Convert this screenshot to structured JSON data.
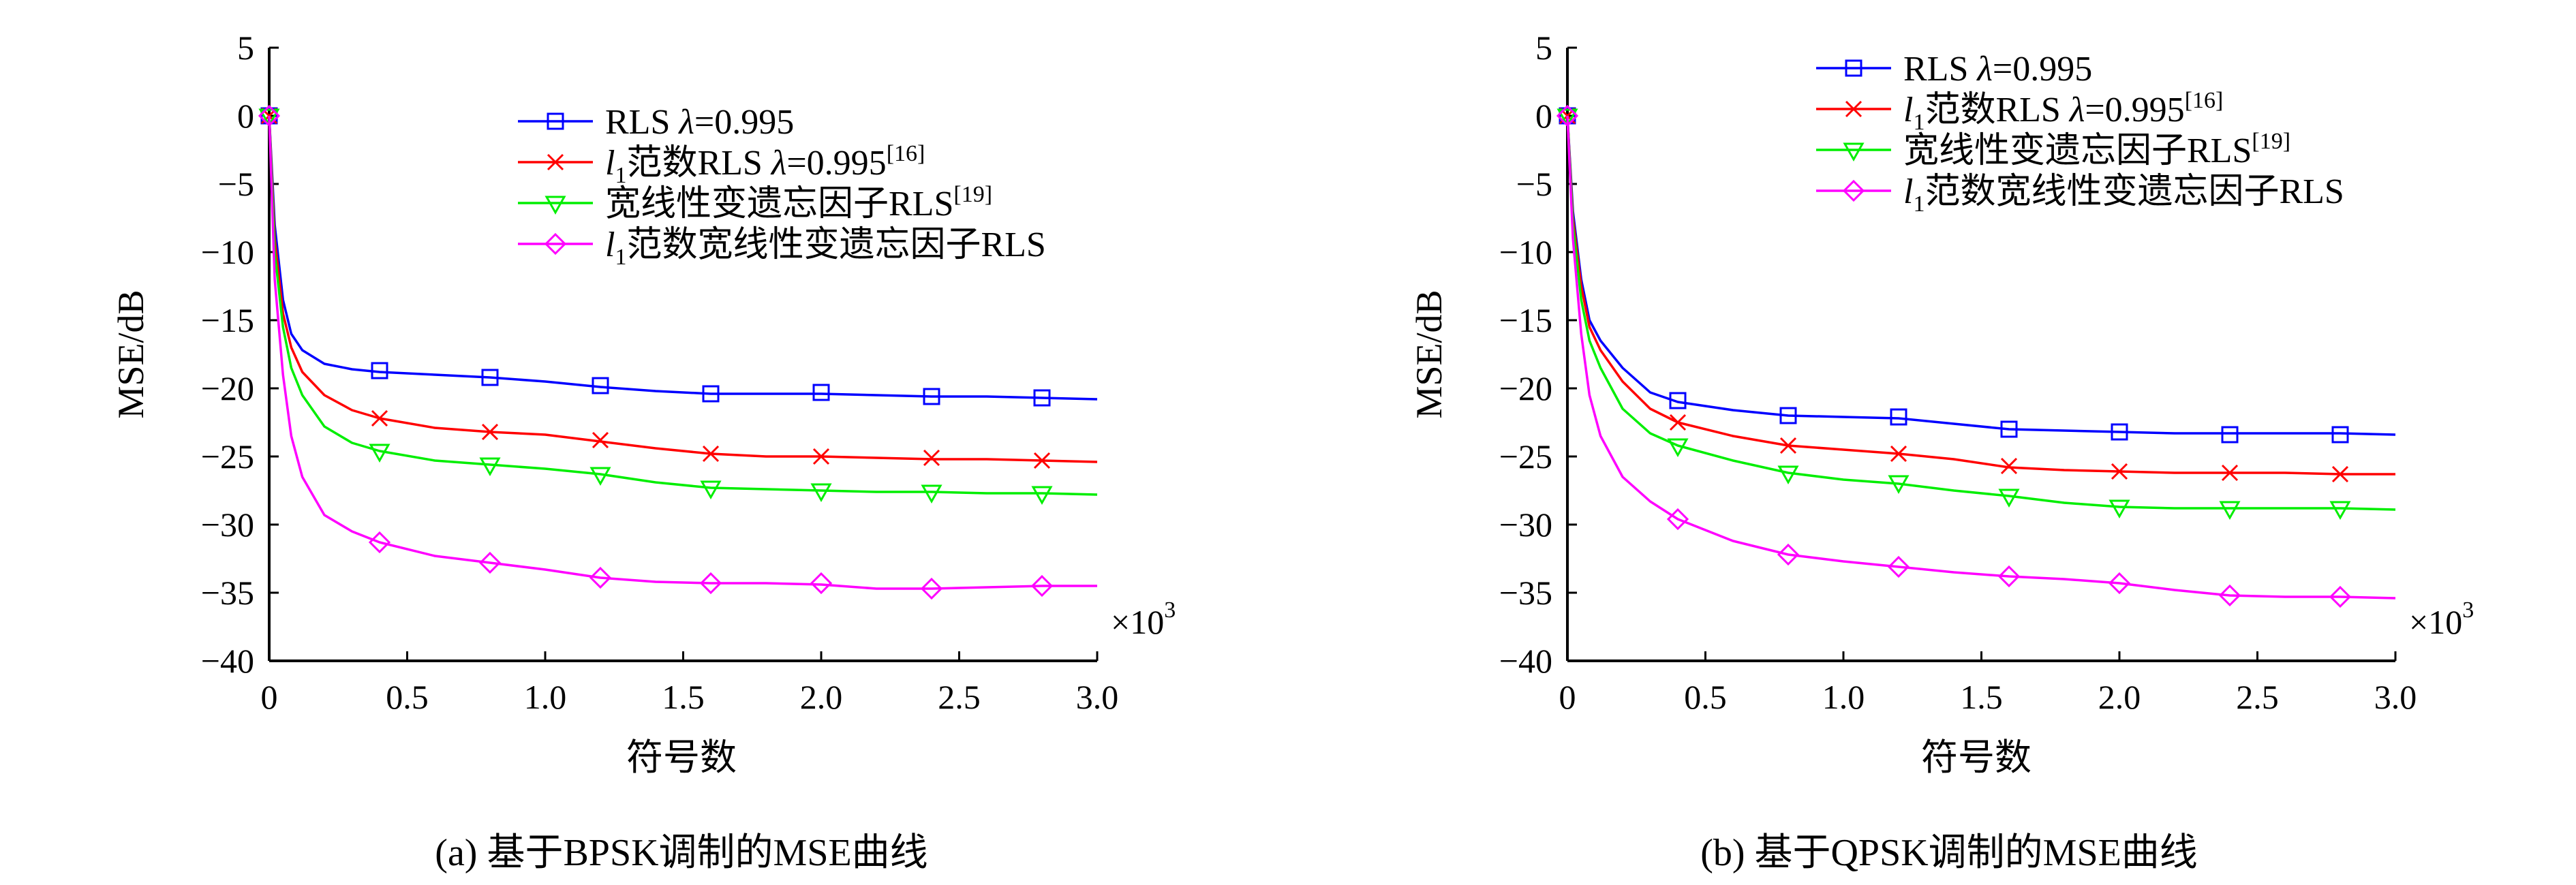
{
  "chart_data": [
    {
      "type": "line",
      "panel": "a",
      "caption": "(a) 基于BPSK调制的MSE曲线",
      "xlabel": "符号数",
      "ylabel": "MSE/dB",
      "x_scale_label": "×10",
      "x_scale_exp": "3",
      "xlim": [
        0,
        3.0
      ],
      "ylim": [
        -40,
        5
      ],
      "xticks": [
        "0",
        "0.5",
        "1.0",
        "1.5",
        "2.0",
        "2.5",
        "3.0"
      ],
      "yticks": [
        "5",
        "0",
        "-5",
        "-10",
        "-15",
        "-20",
        "-25",
        "-30",
        "-35",
        "-40"
      ],
      "legend": {
        "position": "top-right",
        "entries": [
          {
            "pre": "RLS ",
            "italic": "λ",
            "post": "=0.995",
            "sup": ""
          },
          {
            "italic_l": "l",
            "sub": "1",
            "pre": "范数RLS ",
            "italic": "λ",
            "post": "=0.995",
            "sup": "[16]"
          },
          {
            "pre": "宽线性变遗忘因子RLS",
            "sup": "[19]"
          },
          {
            "italic_l": "l",
            "sub": "1",
            "pre": "范数宽线性变遗忘因子RLS",
            "sup": ""
          }
        ]
      },
      "series": [
        {
          "name": "RLS λ=0.995",
          "color": "#0000ff",
          "marker": "square",
          "x": [
            0,
            0.02,
            0.05,
            0.08,
            0.12,
            0.2,
            0.3,
            0.4,
            0.6,
            0.8,
            1.0,
            1.2,
            1.4,
            1.6,
            1.8,
            2.0,
            2.2,
            2.4,
            2.6,
            2.8,
            3.0
          ],
          "y": [
            0,
            -8,
            -13.5,
            -16,
            -17.2,
            -18.2,
            -18.6,
            -18.8,
            -19.0,
            -19.2,
            -19.5,
            -19.9,
            -20.2,
            -20.4,
            -20.4,
            -20.4,
            -20.5,
            -20.6,
            -20.6,
            -20.7,
            -20.8
          ],
          "markers_x": [
            0,
            0.4,
            0.8,
            1.2,
            1.6,
            2.0,
            2.4,
            2.8
          ],
          "markers_y": [
            0,
            -18.7,
            -19.2,
            -19.8,
            -20.4,
            -20.3,
            -20.6,
            -20.7
          ]
        },
        {
          "name": "l1范数RLS λ=0.995",
          "color": "#ff0000",
          "marker": "x",
          "x": [
            0,
            0.02,
            0.05,
            0.08,
            0.12,
            0.2,
            0.3,
            0.4,
            0.6,
            0.8,
            1.0,
            1.2,
            1.4,
            1.6,
            1.8,
            2.0,
            2.2,
            2.4,
            2.6,
            2.8,
            3.0
          ],
          "y": [
            0,
            -9,
            -14.5,
            -17,
            -18.8,
            -20.5,
            -21.6,
            -22.2,
            -22.9,
            -23.2,
            -23.4,
            -23.9,
            -24.4,
            -24.8,
            -25.0,
            -25.0,
            -25.1,
            -25.2,
            -25.2,
            -25.3,
            -25.4
          ],
          "markers_x": [
            0,
            0.4,
            0.8,
            1.2,
            1.6,
            2.0,
            2.4,
            2.8
          ],
          "markers_y": [
            0,
            -22.2,
            -23.2,
            -23.8,
            -24.8,
            -25.0,
            -25.1,
            -25.3
          ]
        },
        {
          "name": "宽线性变遗忘因子RLS",
          "color": "#00ee00",
          "marker": "triangle-down",
          "x": [
            0,
            0.02,
            0.05,
            0.08,
            0.12,
            0.2,
            0.3,
            0.4,
            0.6,
            0.8,
            1.0,
            1.2,
            1.4,
            1.6,
            1.8,
            2.0,
            2.2,
            2.4,
            2.6,
            2.8,
            3.0
          ],
          "y": [
            0,
            -10,
            -15.5,
            -18.5,
            -20.5,
            -22.8,
            -24.0,
            -24.6,
            -25.3,
            -25.6,
            -25.9,
            -26.3,
            -26.9,
            -27.3,
            -27.4,
            -27.5,
            -27.6,
            -27.6,
            -27.7,
            -27.7,
            -27.8
          ],
          "markers_x": [
            0,
            0.4,
            0.8,
            1.2,
            1.6,
            2.0,
            2.4,
            2.8
          ],
          "markers_y": [
            0,
            -24.6,
            -25.6,
            -26.3,
            -27.3,
            -27.5,
            -27.6,
            -27.7
          ]
        },
        {
          "name": "l1范数宽线性变遗忘因子RLS",
          "color": "#ff00ff",
          "marker": "diamond",
          "x": [
            0,
            0.02,
            0.05,
            0.08,
            0.12,
            0.2,
            0.3,
            0.4,
            0.6,
            0.8,
            1.0,
            1.2,
            1.4,
            1.6,
            1.8,
            2.0,
            2.2,
            2.4,
            2.6,
            2.8,
            3.0
          ],
          "y": [
            0,
            -12,
            -19,
            -23.5,
            -26.5,
            -29.3,
            -30.5,
            -31.3,
            -32.3,
            -32.8,
            -33.3,
            -33.9,
            -34.2,
            -34.3,
            -34.3,
            -34.4,
            -34.7,
            -34.7,
            -34.6,
            -34.5,
            -34.5
          ],
          "markers_x": [
            0,
            0.4,
            0.8,
            1.2,
            1.6,
            2.0,
            2.4,
            2.8
          ],
          "markers_y": [
            0,
            -31.3,
            -32.8,
            -33.9,
            -34.3,
            -34.3,
            -34.7,
            -34.5
          ]
        }
      ]
    },
    {
      "type": "line",
      "panel": "b",
      "caption": "(b) 基于QPSK调制的MSE曲线",
      "xlabel": "符号数",
      "ylabel": "MSE/dB",
      "x_scale_label": "×10",
      "x_scale_exp": "3",
      "xlim": [
        0,
        3.0
      ],
      "ylim": [
        -40,
        5
      ],
      "xticks": [
        "0",
        "0.5",
        "1.0",
        "1.5",
        "2.0",
        "2.5",
        "3.0"
      ],
      "yticks": [
        "5",
        "0",
        "-5",
        "-10",
        "-15",
        "-20",
        "-25",
        "-30",
        "-35",
        "-40"
      ],
      "legend": {
        "position": "top-right",
        "entries": [
          {
            "pre": "RLS ",
            "italic": "λ",
            "post": "=0.995",
            "sup": ""
          },
          {
            "italic_l": "l",
            "sub": "1",
            "pre": "范数RLS ",
            "italic": "λ",
            "post": "=0.995",
            "sup": "[16]"
          },
          {
            "pre": "宽线性变遗忘因子RLS",
            "sup": "[19]"
          },
          {
            "italic_l": "l",
            "sub": "1",
            "pre": "范数宽线性变遗忘因子RLS",
            "sup": ""
          }
        ]
      },
      "series": [
        {
          "name": "RLS λ=0.995",
          "color": "#0000ff",
          "marker": "square",
          "x": [
            0,
            0.02,
            0.05,
            0.08,
            0.12,
            0.2,
            0.3,
            0.4,
            0.6,
            0.8,
            1.0,
            1.2,
            1.4,
            1.6,
            1.8,
            2.0,
            2.2,
            2.4,
            2.6,
            2.8,
            3.0
          ],
          "y": [
            0,
            -7,
            -12,
            -15,
            -16.5,
            -18.5,
            -20.3,
            -21.0,
            -21.6,
            -22.0,
            -22.1,
            -22.2,
            -22.6,
            -23.0,
            -23.1,
            -23.2,
            -23.3,
            -23.3,
            -23.3,
            -23.3,
            -23.4
          ],
          "markers_x": [
            0,
            0.4,
            0.8,
            1.2,
            1.6,
            2.0,
            2.4,
            2.8
          ],
          "markers_y": [
            0,
            -20.9,
            -22.0,
            -22.1,
            -23.0,
            -23.2,
            -23.4,
            -23.4
          ]
        },
        {
          "name": "l1范数RLS λ=0.995",
          "color": "#ff0000",
          "marker": "x",
          "x": [
            0,
            0.02,
            0.05,
            0.08,
            0.12,
            0.2,
            0.3,
            0.4,
            0.6,
            0.8,
            1.0,
            1.2,
            1.4,
            1.6,
            1.8,
            2.0,
            2.2,
            2.4,
            2.6,
            2.8,
            3.0
          ],
          "y": [
            0,
            -7.5,
            -12.5,
            -15.5,
            -17.2,
            -19.5,
            -21.5,
            -22.5,
            -23.5,
            -24.2,
            -24.5,
            -24.8,
            -25.2,
            -25.8,
            -26.0,
            -26.1,
            -26.2,
            -26.2,
            -26.2,
            -26.3,
            -26.3
          ],
          "markers_x": [
            0,
            0.4,
            0.8,
            1.2,
            1.6,
            2.0,
            2.4,
            2.8
          ],
          "markers_y": [
            0,
            -22.5,
            -24.2,
            -24.8,
            -25.7,
            -26.1,
            -26.2,
            -26.3
          ]
        },
        {
          "name": "宽线性变遗忘因子RLS",
          "color": "#00ee00",
          "marker": "triangle-down",
          "x": [
            0,
            0.02,
            0.05,
            0.08,
            0.12,
            0.2,
            0.3,
            0.4,
            0.6,
            0.8,
            1.0,
            1.2,
            1.4,
            1.6,
            1.8,
            2.0,
            2.2,
            2.4,
            2.6,
            2.8,
            3.0
          ],
          "y": [
            0,
            -8,
            -13.5,
            -16.5,
            -18.5,
            -21.5,
            -23.3,
            -24.2,
            -25.3,
            -26.2,
            -26.7,
            -27.0,
            -27.5,
            -27.9,
            -28.4,
            -28.7,
            -28.8,
            -28.8,
            -28.8,
            -28.8,
            -28.9
          ],
          "markers_x": [
            0,
            0.4,
            0.8,
            1.2,
            1.6,
            2.0,
            2.4,
            2.8
          ],
          "markers_y": [
            0,
            -24.2,
            -26.2,
            -26.9,
            -27.9,
            -28.7,
            -28.8,
            -28.8
          ]
        },
        {
          "name": "l1范数宽线性变遗忘因子RLS",
          "color": "#ff00ff",
          "marker": "diamond",
          "x": [
            0,
            0.02,
            0.05,
            0.08,
            0.12,
            0.2,
            0.3,
            0.4,
            0.6,
            0.8,
            1.0,
            1.2,
            1.4,
            1.6,
            1.8,
            2.0,
            2.2,
            2.4,
            2.6,
            2.8,
            3.0
          ],
          "y": [
            0,
            -9,
            -16,
            -20.5,
            -23.5,
            -26.5,
            -28.3,
            -29.6,
            -31.2,
            -32.2,
            -32.7,
            -33.1,
            -33.5,
            -33.8,
            -34.0,
            -34.3,
            -34.8,
            -35.2,
            -35.3,
            -35.3,
            -35.4
          ],
          "markers_x": [
            0,
            0.4,
            0.8,
            1.2,
            1.6,
            2.0,
            2.4,
            2.8
          ],
          "markers_y": [
            0,
            -29.6,
            -32.2,
            -33.1,
            -33.8,
            -34.3,
            -35.2,
            -35.3
          ]
        }
      ]
    }
  ]
}
